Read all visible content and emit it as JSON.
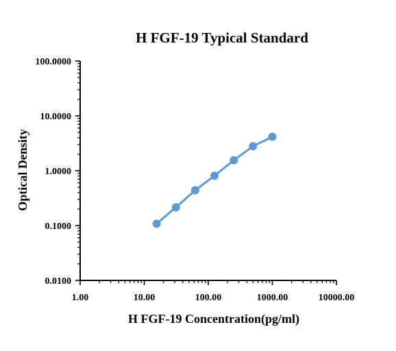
{
  "chart_data": {
    "type": "line",
    "title": "H FGF-19 Typical Standard",
    "xlabel": "H FGF-19 Concentration(pg/ml)",
    "ylabel": "Optical Density",
    "x_scale": "log",
    "y_scale": "log",
    "xlim": [
      1,
      10000
    ],
    "ylim": [
      0.01,
      100
    ],
    "x_ticks": [
      "1.00",
      "10.00",
      "100.00",
      "1000.00",
      "10000.00"
    ],
    "y_ticks": [
      "0.0100",
      "0.1000",
      "1.0000",
      "10.0000",
      "100.0000"
    ],
    "grid": false,
    "legend": "none",
    "series": [
      {
        "x": [
          15.625,
          31.25,
          62.5,
          125,
          250,
          500,
          1000
        ],
        "y": [
          0.108,
          0.215,
          0.44,
          0.81,
          1.55,
          2.8,
          4.15
        ],
        "color": "#5b9bd5"
      }
    ]
  }
}
